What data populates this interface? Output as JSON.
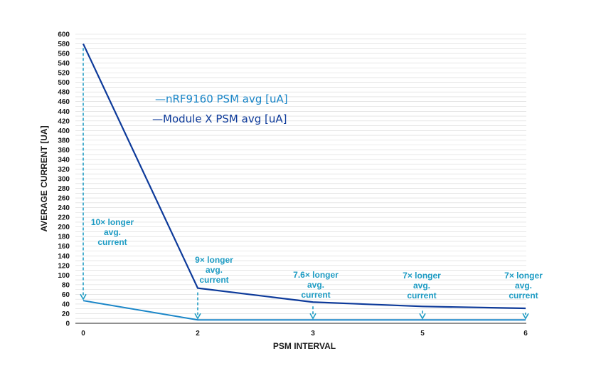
{
  "chart_data": {
    "type": "line",
    "xlabel": "PSM INTERVAL",
    "ylabel": "AVERAGE CURRENT [UA]",
    "categories": [
      "0",
      "2",
      "3",
      "5",
      "6"
    ],
    "ylim": [
      0,
      600
    ],
    "ytick_step": 10,
    "ylabel_step": 20,
    "grid": true,
    "legend_placement": "upper-left",
    "series": [
      {
        "name": "—nRF9160 PSM avg [uA]",
        "color": "#1a86c8",
        "values": [
          47,
          7,
          7,
          7,
          7
        ]
      },
      {
        "name": "—Module X PSM avg [uA]",
        "color": "#0d3a9a",
        "values": [
          580,
          73,
          44,
          35,
          31
        ]
      }
    ],
    "annotations": [
      {
        "x_index": 0,
        "lines": [
          "10× longer",
          "avg.",
          "current"
        ]
      },
      {
        "x_index": 1,
        "lines": [
          "9× longer",
          "avg.",
          "current"
        ]
      },
      {
        "x_index": 2,
        "lines": [
          "7.6× longer",
          "avg.",
          "current"
        ]
      },
      {
        "x_index": 3,
        "lines": [
          "7× longer",
          "avg.",
          "current"
        ]
      },
      {
        "x_index": 4,
        "lines": [
          "7× longer",
          "avg.",
          "current"
        ]
      }
    ],
    "annotation_color": "#1e9cc4",
    "grid_color": "#d8d8d8"
  }
}
